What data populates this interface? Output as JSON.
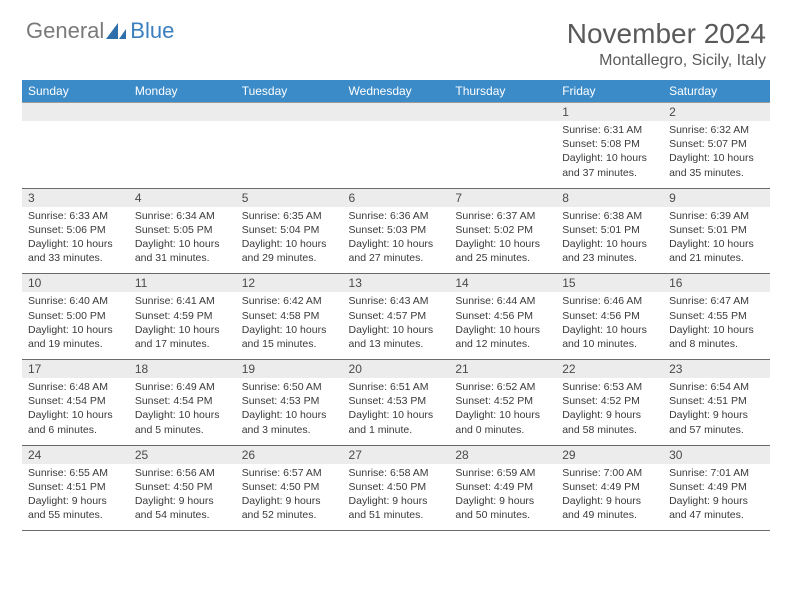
{
  "logo": {
    "part1": "General",
    "part2": "Blue"
  },
  "title": "November 2024",
  "location": "Montallegro, Sicily, Italy",
  "colors": {
    "header_bg": "#3b8bc9",
    "header_text": "#ffffff",
    "daynum_bg": "#ececec",
    "border": "#6a6a6a",
    "logo_gray": "#7a7a7a",
    "logo_blue": "#3b7fbf"
  },
  "day_headers": [
    "Sunday",
    "Monday",
    "Tuesday",
    "Wednesday",
    "Thursday",
    "Friday",
    "Saturday"
  ],
  "weeks": [
    {
      "nums": [
        "",
        "",
        "",
        "",
        "",
        "1",
        "2"
      ],
      "cells": [
        null,
        null,
        null,
        null,
        null,
        {
          "sunrise": "6:31 AM",
          "sunset": "5:08 PM",
          "daylight": "10 hours and 37 minutes."
        },
        {
          "sunrise": "6:32 AM",
          "sunset": "5:07 PM",
          "daylight": "10 hours and 35 minutes."
        }
      ]
    },
    {
      "nums": [
        "3",
        "4",
        "5",
        "6",
        "7",
        "8",
        "9"
      ],
      "cells": [
        {
          "sunrise": "6:33 AM",
          "sunset": "5:06 PM",
          "daylight": "10 hours and 33 minutes."
        },
        {
          "sunrise": "6:34 AM",
          "sunset": "5:05 PM",
          "daylight": "10 hours and 31 minutes."
        },
        {
          "sunrise": "6:35 AM",
          "sunset": "5:04 PM",
          "daylight": "10 hours and 29 minutes."
        },
        {
          "sunrise": "6:36 AM",
          "sunset": "5:03 PM",
          "daylight": "10 hours and 27 minutes."
        },
        {
          "sunrise": "6:37 AM",
          "sunset": "5:02 PM",
          "daylight": "10 hours and 25 minutes."
        },
        {
          "sunrise": "6:38 AM",
          "sunset": "5:01 PM",
          "daylight": "10 hours and 23 minutes."
        },
        {
          "sunrise": "6:39 AM",
          "sunset": "5:01 PM",
          "daylight": "10 hours and 21 minutes."
        }
      ]
    },
    {
      "nums": [
        "10",
        "11",
        "12",
        "13",
        "14",
        "15",
        "16"
      ],
      "cells": [
        {
          "sunrise": "6:40 AM",
          "sunset": "5:00 PM",
          "daylight": "10 hours and 19 minutes."
        },
        {
          "sunrise": "6:41 AM",
          "sunset": "4:59 PM",
          "daylight": "10 hours and 17 minutes."
        },
        {
          "sunrise": "6:42 AM",
          "sunset": "4:58 PM",
          "daylight": "10 hours and 15 minutes."
        },
        {
          "sunrise": "6:43 AM",
          "sunset": "4:57 PM",
          "daylight": "10 hours and 13 minutes."
        },
        {
          "sunrise": "6:44 AM",
          "sunset": "4:56 PM",
          "daylight": "10 hours and 12 minutes."
        },
        {
          "sunrise": "6:46 AM",
          "sunset": "4:56 PM",
          "daylight": "10 hours and 10 minutes."
        },
        {
          "sunrise": "6:47 AM",
          "sunset": "4:55 PM",
          "daylight": "10 hours and 8 minutes."
        }
      ]
    },
    {
      "nums": [
        "17",
        "18",
        "19",
        "20",
        "21",
        "22",
        "23"
      ],
      "cells": [
        {
          "sunrise": "6:48 AM",
          "sunset": "4:54 PM",
          "daylight": "10 hours and 6 minutes."
        },
        {
          "sunrise": "6:49 AM",
          "sunset": "4:54 PM",
          "daylight": "10 hours and 5 minutes."
        },
        {
          "sunrise": "6:50 AM",
          "sunset": "4:53 PM",
          "daylight": "10 hours and 3 minutes."
        },
        {
          "sunrise": "6:51 AM",
          "sunset": "4:53 PM",
          "daylight": "10 hours and 1 minute."
        },
        {
          "sunrise": "6:52 AM",
          "sunset": "4:52 PM",
          "daylight": "10 hours and 0 minutes."
        },
        {
          "sunrise": "6:53 AM",
          "sunset": "4:52 PM",
          "daylight": "9 hours and 58 minutes."
        },
        {
          "sunrise": "6:54 AM",
          "sunset": "4:51 PM",
          "daylight": "9 hours and 57 minutes."
        }
      ]
    },
    {
      "nums": [
        "24",
        "25",
        "26",
        "27",
        "28",
        "29",
        "30"
      ],
      "cells": [
        {
          "sunrise": "6:55 AM",
          "sunset": "4:51 PM",
          "daylight": "9 hours and 55 minutes."
        },
        {
          "sunrise": "6:56 AM",
          "sunset": "4:50 PM",
          "daylight": "9 hours and 54 minutes."
        },
        {
          "sunrise": "6:57 AM",
          "sunset": "4:50 PM",
          "daylight": "9 hours and 52 minutes."
        },
        {
          "sunrise": "6:58 AM",
          "sunset": "4:50 PM",
          "daylight": "9 hours and 51 minutes."
        },
        {
          "sunrise": "6:59 AM",
          "sunset": "4:49 PM",
          "daylight": "9 hours and 50 minutes."
        },
        {
          "sunrise": "7:00 AM",
          "sunset": "4:49 PM",
          "daylight": "9 hours and 49 minutes."
        },
        {
          "sunrise": "7:01 AM",
          "sunset": "4:49 PM",
          "daylight": "9 hours and 47 minutes."
        }
      ]
    }
  ],
  "labels": {
    "sunrise": "Sunrise:",
    "sunset": "Sunset:",
    "daylight": "Daylight:"
  }
}
